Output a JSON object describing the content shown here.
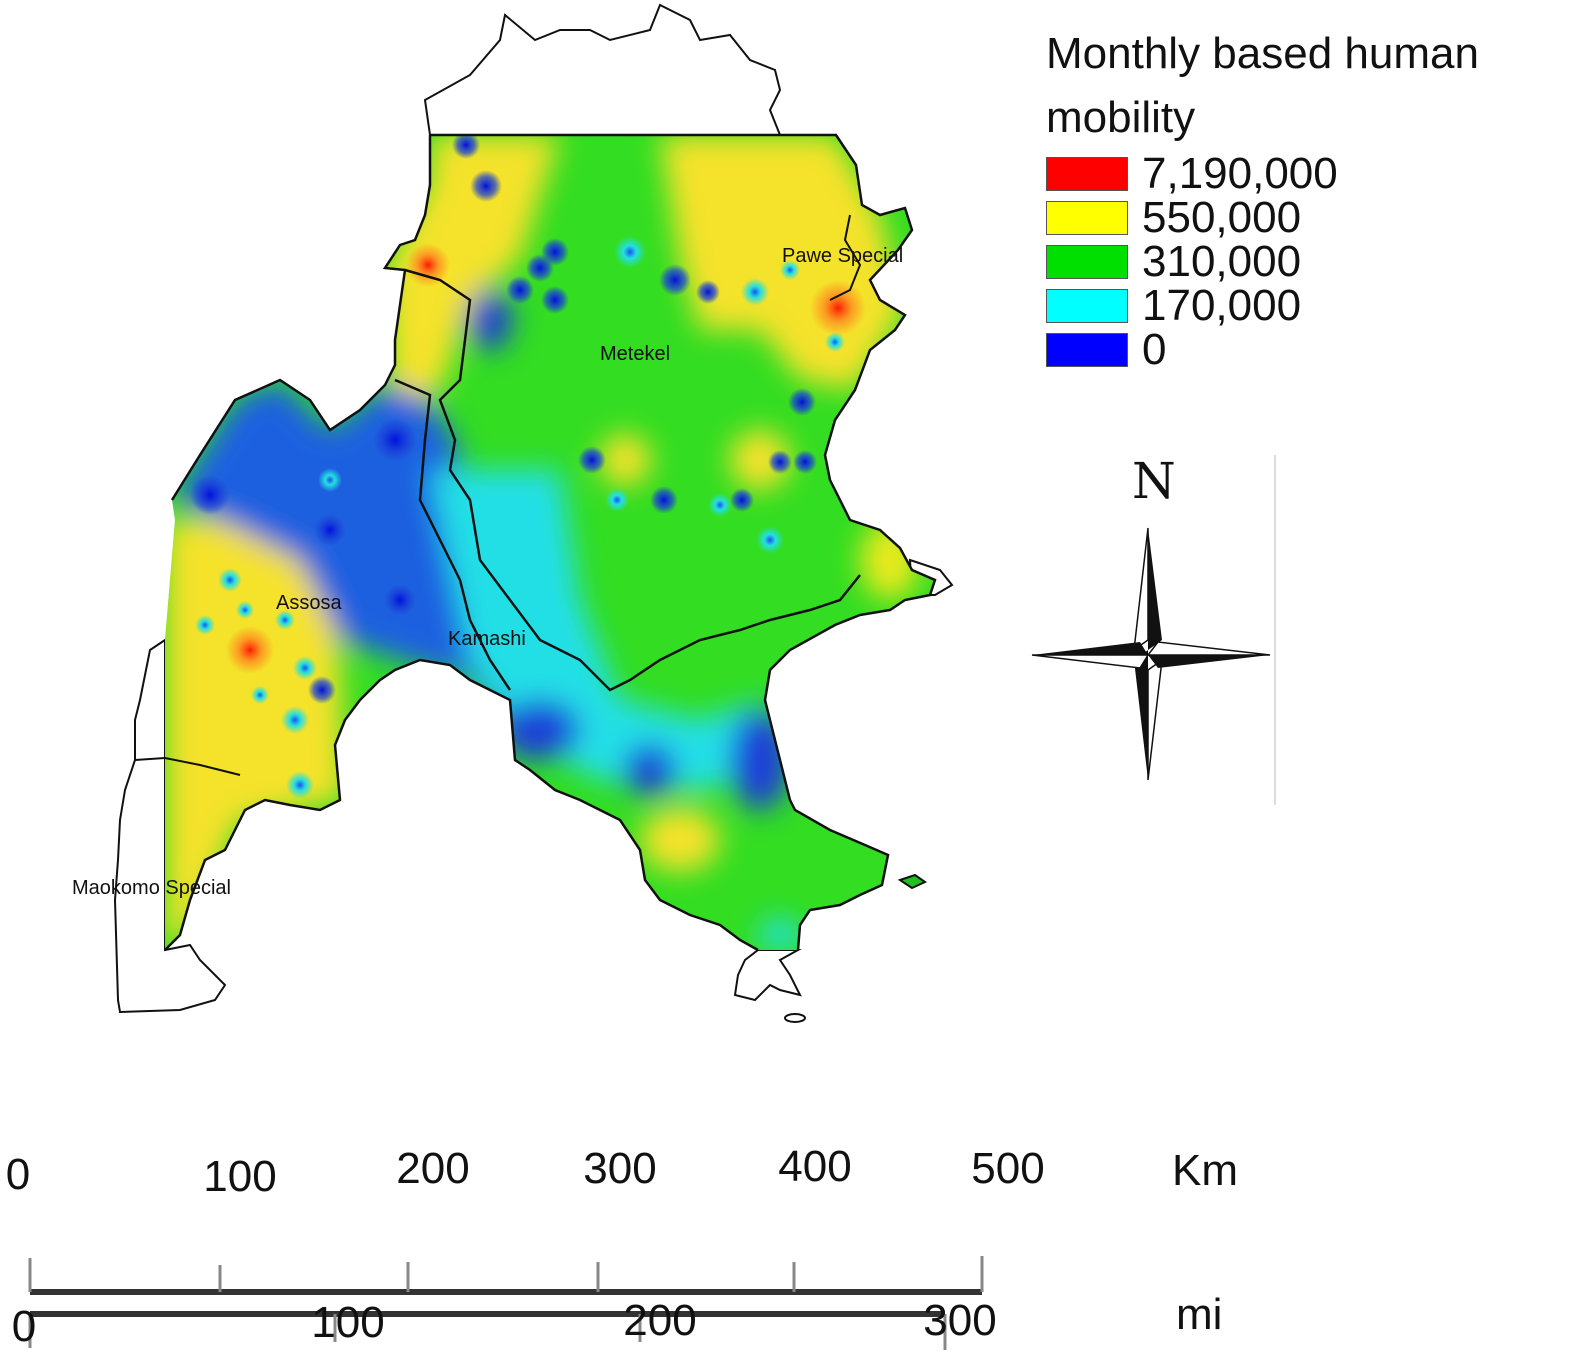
{
  "map": {
    "regions": [
      {
        "name": "Pawe Special"
      },
      {
        "name": "Metekel"
      },
      {
        "name": "Assosa"
      },
      {
        "name": "Kamashi"
      },
      {
        "name": "Maokomo Special"
      }
    ]
  },
  "legend": {
    "title": "Monthly based human mobility",
    "classes": [
      {
        "label": "7,190,000",
        "color": "#ff0000"
      },
      {
        "label": "550,000",
        "color": "#ffff00"
      },
      {
        "label": "310,000",
        "color": "#00e000"
      },
      {
        "label": "170,000",
        "color": "#00ffff"
      },
      {
        "label": "0",
        "color": "#0000ff"
      }
    ]
  },
  "north_arrow": {
    "label": "N"
  },
  "scale_bar": {
    "km": {
      "unit": "Km",
      "ticks": [
        "0",
        "100",
        "200",
        "300",
        "400",
        "500"
      ]
    },
    "mi": {
      "unit": "mi",
      "ticks": [
        "0",
        "100",
        "200",
        "300"
      ]
    }
  },
  "colors": {
    "red": "#ff0000",
    "yellow": "#f5e22a",
    "green": "#33dd22",
    "cyan": "#22e0e0",
    "blue": "#1a3fd8",
    "boundary": "#111111"
  }
}
